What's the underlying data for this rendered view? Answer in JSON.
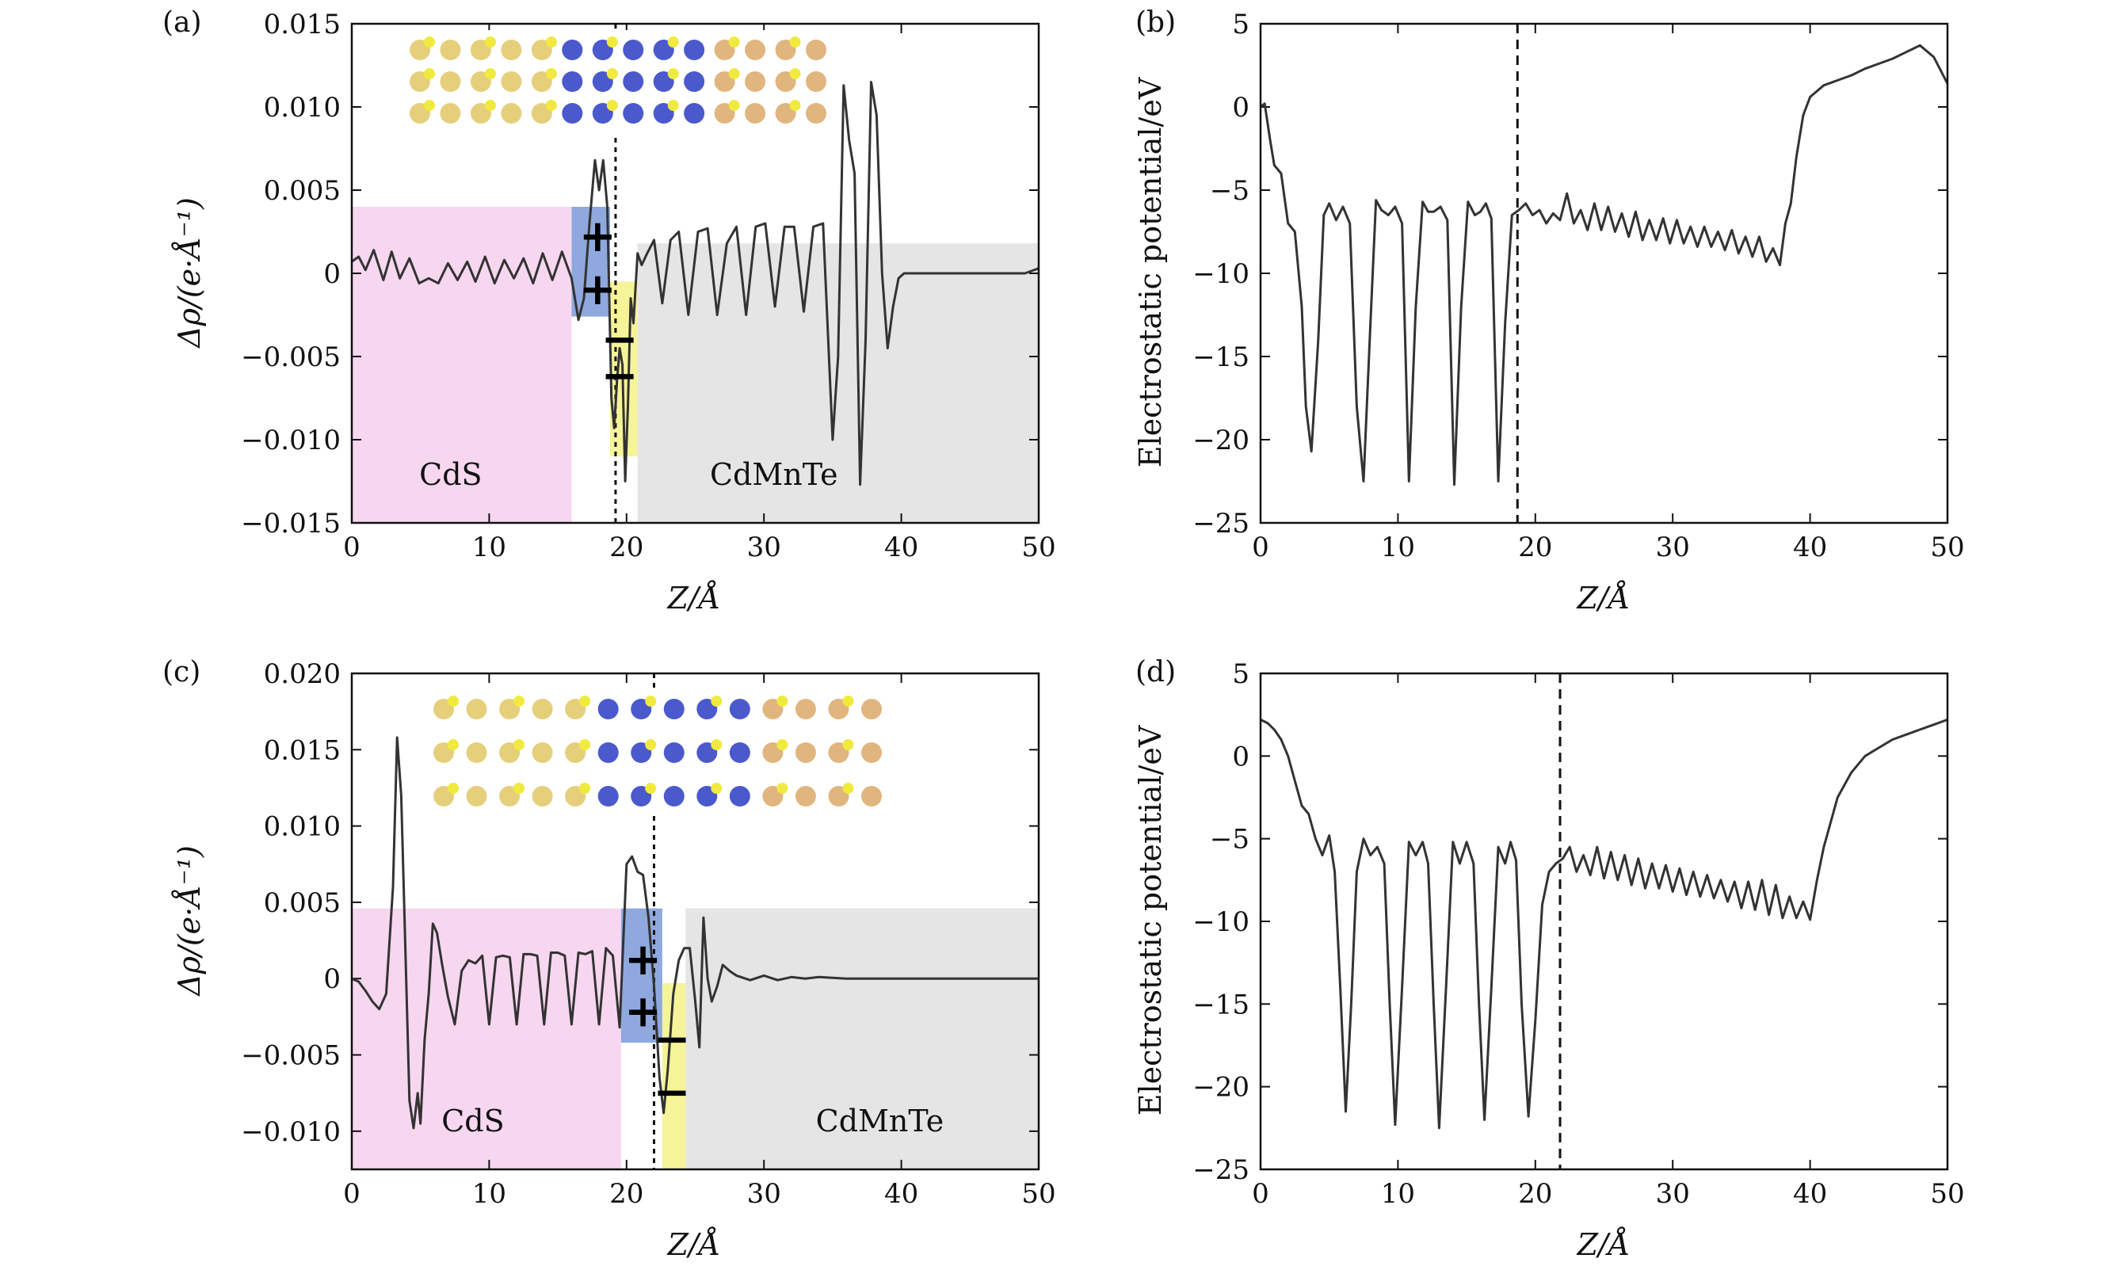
{
  "colors": {
    "line": "#333333",
    "cds_region": "#f7d7f0",
    "cdmnte_region": "#e5e5e5",
    "positive_region": "#7b9ad8",
    "negative_region": "#f4f286",
    "axis": "#111111"
  },
  "chart_data": [
    {
      "panel": "(a)",
      "type": "line",
      "xlabel": "Z/Å",
      "ylabel": "Δρ/(e·Å⁻¹)",
      "xlim": [
        0,
        50
      ],
      "ylim": [
        -0.015,
        0.015
      ],
      "xticks": [
        0,
        10,
        20,
        30,
        40,
        50
      ],
      "xtick_labels": [
        "0",
        "10",
        "20",
        "30",
        "40",
        "50"
      ],
      "yticks": [
        -0.015,
        -0.01,
        -0.005,
        0,
        0.005,
        0.01,
        0.015
      ],
      "ytick_labels": [
        "−0.015",
        "−0.010",
        "−0.005",
        "0",
        "0.005",
        "0.010",
        "0.015"
      ],
      "interface_z": 19.2,
      "regions": [
        {
          "name": "CdS",
          "kind": "cds",
          "x": [
            0,
            16
          ],
          "y": [
            -0.015,
            0.004
          ]
        },
        {
          "name": "",
          "kind": "positive",
          "x": [
            16,
            18.8
          ],
          "y": [
            -0.0026,
            0.004
          ]
        },
        {
          "name": "",
          "kind": "negative",
          "x": [
            18.8,
            20.8
          ],
          "y": [
            -0.011,
            -0.0005
          ]
        },
        {
          "name": "CdMnTe",
          "kind": "cdmnte",
          "x": [
            20.8,
            50
          ],
          "y": [
            -0.015,
            0.0018
          ]
        }
      ],
      "region_labels": [
        "CdS",
        "CdMnTe"
      ],
      "signs": [
        {
          "text": "+",
          "x": 17.9,
          "y": 0.0022
        },
        {
          "text": "+",
          "x": 17.9,
          "y": -0.001
        },
        {
          "text": "−",
          "x": 19.5,
          "y": -0.004
        },
        {
          "text": "−",
          "x": 19.5,
          "y": -0.0062
        }
      ],
      "series": [
        {
          "x": [
            0,
            0.5,
            1,
            1.6,
            2.3,
            2.9,
            3.5,
            4.2,
            4.9,
            5.6,
            6.3,
            7,
            7.7,
            8.4,
            9,
            9.7,
            10.4,
            11.1,
            11.8,
            12.5,
            13.2,
            13.9,
            14.6,
            15.3,
            16,
            16.5,
            16.9,
            17.3,
            17.7,
            18,
            18.3,
            18.6,
            18.9,
            19.1,
            19.3,
            19.5,
            19.7,
            19.9,
            20.1,
            20.3,
            20.5,
            20.8,
            21.1,
            21.5,
            22,
            22.6,
            23.2,
            23.8,
            24.5,
            25.2,
            25.9,
            26.6,
            27.3,
            28,
            28.7,
            29.4,
            30.1,
            30.8,
            31.5,
            32.2,
            32.9,
            33.6,
            34.3,
            35,
            35.4,
            35.8,
            36.2,
            36.6,
            37,
            37.4,
            37.8,
            38.2,
            38.6,
            39,
            39.4,
            39.8,
            40.2,
            40.8,
            41.5,
            43,
            45,
            47,
            49,
            50
          ],
          "y": [
            0.0007,
            0.001,
            0.0002,
            0.0014,
            -0.0004,
            0.0013,
            -0.0003,
            0.0009,
            -0.0006,
            -0.0003,
            -0.0006,
            0.0006,
            -0.0004,
            0.0007,
            -0.0005,
            0.001,
            -0.0006,
            0.0008,
            -0.0003,
            0.0009,
            -0.0006,
            0.0012,
            -0.0004,
            0.0013,
            -0.0003,
            -0.0028,
            -0.0015,
            0.003,
            0.0068,
            0.005,
            0.0068,
            0.004,
            -0.0075,
            -0.0093,
            -0.0065,
            -0.0045,
            -0.0055,
            -0.0125,
            -0.008,
            -0.0015,
            -0.003,
            0.0012,
            0.0005,
            0.0012,
            0.002,
            -0.0018,
            0.002,
            0.0025,
            -0.0025,
            0.0025,
            0.0027,
            -0.0025,
            0.0018,
            0.0028,
            -0.0025,
            0.0028,
            0.003,
            -0.002,
            0.0028,
            0.0028,
            -0.0023,
            0.0028,
            0.003,
            -0.01,
            -0.005,
            0.0113,
            0.008,
            0.006,
            -0.0127,
            -0.004,
            0.0115,
            0.0095,
            0,
            -0.0045,
            -0.002,
            -0.0003,
            0,
            0,
            0,
            0,
            0,
            0,
            0,
            0.0003
          ]
        }
      ]
    },
    {
      "panel": "(b)",
      "type": "line",
      "xlabel": "Z/Å",
      "ylabel": "Electrostatic potential/eV",
      "xlim": [
        0,
        50
      ],
      "ylim": [
        -25,
        5
      ],
      "xticks": [
        0,
        10,
        20,
        30,
        40,
        50
      ],
      "xtick_labels": [
        "0",
        "10",
        "20",
        "30",
        "40",
        "50"
      ],
      "yticks": [
        -25,
        -20,
        -15,
        -10,
        -5,
        0,
        5
      ],
      "ytick_labels": [
        "−25",
        "−20",
        "−15",
        "−10",
        "−5",
        "0",
        "5"
      ],
      "interface_z": 18.7,
      "series": [
        {
          "x": [
            0,
            0.3,
            0.7,
            1,
            1.5,
            2,
            2.5,
            3,
            3.3,
            3.7,
            4.2,
            4.6,
            5,
            5.5,
            6,
            6.5,
            7,
            7.5,
            8,
            8.4,
            8.8,
            9.3,
            9.8,
            10.3,
            10.8,
            11.3,
            11.8,
            12.2,
            12.6,
            13.1,
            13.6,
            14.1,
            14.6,
            15.1,
            15.6,
            16,
            16.4,
            16.8,
            17.3,
            17.8,
            18.3,
            18.8,
            19.3,
            19.8,
            20.3,
            20.8,
            21.3,
            21.8,
            22.3,
            22.8,
            23.3,
            23.8,
            24.3,
            24.8,
            25.3,
            25.8,
            26.3,
            26.8,
            27.3,
            27.8,
            28.3,
            28.8,
            29.3,
            29.8,
            30.3,
            30.8,
            31.3,
            31.8,
            32.3,
            32.8,
            33.3,
            33.8,
            34.3,
            34.8,
            35.3,
            35.8,
            36.3,
            36.8,
            37.3,
            37.8,
            38.2,
            38.6,
            39,
            39.5,
            40,
            41,
            42,
            43,
            44,
            45,
            46,
            47,
            48,
            49,
            50
          ],
          "y": [
            0,
            0.2,
            -2,
            -3.5,
            -4,
            -7,
            -7.5,
            -12,
            -18,
            -20.7,
            -14,
            -6.5,
            -5.8,
            -6.8,
            -6,
            -7,
            -18,
            -22.5,
            -13,
            -5.6,
            -6.2,
            -6.5,
            -6,
            -7,
            -22.5,
            -12,
            -5.7,
            -6.3,
            -6.3,
            -6,
            -6.8,
            -22.7,
            -12,
            -5.7,
            -6.5,
            -6.3,
            -5.8,
            -6.7,
            -22.5,
            -13,
            -6.5,
            -6.2,
            -5.8,
            -6.5,
            -6.2,
            -7,
            -6.4,
            -6.8,
            -5.2,
            -7,
            -6.2,
            -7.4,
            -5.8,
            -7.4,
            -6,
            -7.5,
            -6.4,
            -7.8,
            -6.3,
            -8,
            -6.8,
            -8,
            -6.7,
            -8.2,
            -6.8,
            -8.2,
            -7.2,
            -8.4,
            -7.2,
            -8.4,
            -7.5,
            -8.6,
            -7.4,
            -8.8,
            -7.8,
            -9,
            -7.8,
            -9.3,
            -8.5,
            -9.5,
            -7,
            -5.8,
            -3,
            -0.5,
            0.6,
            1.3,
            1.6,
            1.9,
            2.3,
            2.6,
            2.9,
            3.3,
            3.7,
            3,
            1.4
          ]
        }
      ]
    },
    {
      "panel": "(c)",
      "type": "line",
      "xlabel": "Z/Å",
      "ylabel": "Δρ/(e·Å⁻¹)",
      "xlim": [
        0,
        50
      ],
      "ylim": [
        -0.0125,
        0.02
      ],
      "xticks": [
        0,
        10,
        20,
        30,
        40,
        50
      ],
      "xtick_labels": [
        "0",
        "10",
        "20",
        "30",
        "40",
        "50"
      ],
      "yticks": [
        -0.01,
        -0.005,
        0,
        0.005,
        0.01,
        0.015,
        0.02
      ],
      "ytick_labels": [
        "−0.010",
        "−0.005",
        "0",
        "0.005",
        "0.010",
        "0.015",
        "0.020"
      ],
      "interface_z": 22,
      "regions": [
        {
          "name": "CdS",
          "kind": "cds",
          "x": [
            0,
            19.6
          ],
          "y": [
            -0.0125,
            0.0046
          ]
        },
        {
          "name": "",
          "kind": "positive",
          "x": [
            19.6,
            22.6
          ],
          "y": [
            -0.0042,
            0.0046
          ]
        },
        {
          "name": "",
          "kind": "negative",
          "x": [
            22.6,
            24.3
          ],
          "y": [
            -0.0125,
            -0.0003
          ]
        },
        {
          "name": "CdMnTe",
          "kind": "cdmnte",
          "x": [
            24.3,
            50
          ],
          "y": [
            -0.0125,
            0.0046
          ]
        }
      ],
      "region_labels": [
        "CdS",
        "CdMnTe"
      ],
      "signs": [
        {
          "text": "+",
          "x": 21.2,
          "y": 0.0012
        },
        {
          "text": "+",
          "x": 21.2,
          "y": -0.0022
        },
        {
          "text": "−",
          "x": 23.3,
          "y": -0.004
        },
        {
          "text": "−",
          "x": 23.3,
          "y": -0.0075
        }
      ],
      "series": [
        {
          "x": [
            0,
            0.5,
            1,
            1.5,
            2,
            2.5,
            3,
            3.3,
            3.6,
            3.9,
            4.2,
            4.5,
            4.8,
            5,
            5.3,
            5.6,
            5.9,
            6.2,
            6.6,
            7,
            7.5,
            8,
            8.5,
            9,
            9.5,
            10,
            10.5,
            11,
            11.5,
            12,
            12.5,
            13,
            13.5,
            14,
            14.5,
            15,
            15.5,
            16,
            16.5,
            17,
            17.5,
            18,
            18.5,
            19,
            19.5,
            20,
            20.4,
            20.8,
            21.2,
            21.6,
            22,
            22.4,
            22.7,
            23,
            23.4,
            23.8,
            24.2,
            24.6,
            25,
            25.3,
            25.6,
            25.9,
            26.2,
            26.6,
            27,
            27.5,
            28,
            29,
            30,
            31,
            32,
            33,
            34,
            36,
            38,
            40,
            45,
            50
          ],
          "y": [
            0,
            -0.0002,
            -0.0008,
            -0.0015,
            -0.002,
            -0.001,
            0.006,
            0.0158,
            0.012,
            0.002,
            -0.008,
            -0.0098,
            -0.0075,
            -0.0095,
            -0.004,
            -0.001,
            0.0036,
            0.003,
            0.0008,
            -0.0012,
            -0.003,
            0.0005,
            0.0012,
            0.001,
            0.0015,
            -0.003,
            0.0014,
            0.0015,
            0.0014,
            -0.003,
            0.0016,
            0.0016,
            0.0015,
            -0.003,
            0.0017,
            0.0017,
            0.0015,
            -0.003,
            0.0017,
            0.0016,
            0.0018,
            -0.003,
            0.002,
            0.0015,
            -0.0032,
            0.0075,
            0.008,
            0.007,
            0.0068,
            0.004,
            -0.0005,
            -0.0065,
            -0.0088,
            -0.006,
            -0.001,
            0.0012,
            0.002,
            0.002,
            -0.0015,
            -0.0045,
            0.004,
            0,
            -0.0015,
            -0.0005,
            0.0009,
            0.0005,
            0.0002,
            -0.0001,
            0.0002,
            -0.0001,
            0.0001,
            0,
            0.0001,
            0,
            0,
            0,
            0,
            0
          ]
        }
      ]
    },
    {
      "panel": "(d)",
      "type": "line",
      "xlabel": "Z/Å",
      "ylabel": "Electrostatic potential/eV",
      "xlim": [
        0,
        50
      ],
      "ylim": [
        -25,
        5
      ],
      "xticks": [
        0,
        10,
        20,
        30,
        40,
        50
      ],
      "xtick_labels": [
        "0",
        "10",
        "20",
        "30",
        "40",
        "50"
      ],
      "yticks": [
        -25,
        -20,
        -15,
        -10,
        -5,
        0,
        5
      ],
      "ytick_labels": [
        "−25",
        "−20",
        "−15",
        "−10",
        "−5",
        "0",
        "5"
      ],
      "interface_z": 21.8,
      "series": [
        {
          "x": [
            0,
            0.5,
            1,
            1.5,
            2,
            2.5,
            3,
            3.5,
            4,
            4.5,
            5,
            5.4,
            5.8,
            6.2,
            6.6,
            7,
            7.5,
            8,
            8.5,
            9,
            9.4,
            9.8,
            10.3,
            10.8,
            11.3,
            11.8,
            12.2,
            12.6,
            13,
            13.5,
            14,
            14.5,
            15,
            15.5,
            15.9,
            16.3,
            16.8,
            17.3,
            17.8,
            18.2,
            18.6,
            19,
            19.5,
            20,
            20.5,
            21,
            21.5,
            22,
            22.5,
            23,
            23.5,
            24,
            24.5,
            25,
            25.5,
            26,
            26.5,
            27,
            27.5,
            28,
            28.5,
            29,
            29.5,
            30,
            30.5,
            31,
            31.5,
            32,
            32.5,
            33,
            33.5,
            34,
            34.5,
            35,
            35.5,
            36,
            36.5,
            37,
            37.5,
            38,
            38.5,
            39,
            39.5,
            40,
            40.5,
            41,
            42,
            43,
            44,
            45,
            46,
            47,
            48,
            49,
            50
          ],
          "y": [
            2.2,
            2,
            1.6,
            1,
            0,
            -1.5,
            -3,
            -3.5,
            -5,
            -6,
            -4.8,
            -7,
            -14,
            -21.5,
            -15,
            -7,
            -5,
            -6,
            -5.5,
            -6.5,
            -15,
            -22.3,
            -14,
            -5.2,
            -6,
            -5.2,
            -6.5,
            -15,
            -22.5,
            -14,
            -5.2,
            -6.5,
            -5.2,
            -6.5,
            -15,
            -22,
            -14,
            -5.5,
            -6.5,
            -5.2,
            -6.3,
            -15,
            -21.8,
            -16,
            -9,
            -7,
            -6.5,
            -6.2,
            -5.5,
            -7,
            -6,
            -7.2,
            -5.5,
            -7.4,
            -5.8,
            -7.5,
            -6,
            -7.8,
            -6.2,
            -8,
            -6.5,
            -8,
            -6.6,
            -8.2,
            -6.8,
            -8.4,
            -7,
            -8.5,
            -7.2,
            -8.6,
            -7.5,
            -8.8,
            -7.6,
            -9.2,
            -7.6,
            -9.3,
            -7.5,
            -9.6,
            -7.8,
            -9.8,
            -8.5,
            -9.8,
            -8.8,
            -9.9,
            -7.5,
            -5.5,
            -2.5,
            -1,
            0,
            0.5,
            1,
            1.3,
            1.6,
            1.9,
            2.2
          ]
        }
      ]
    }
  ]
}
